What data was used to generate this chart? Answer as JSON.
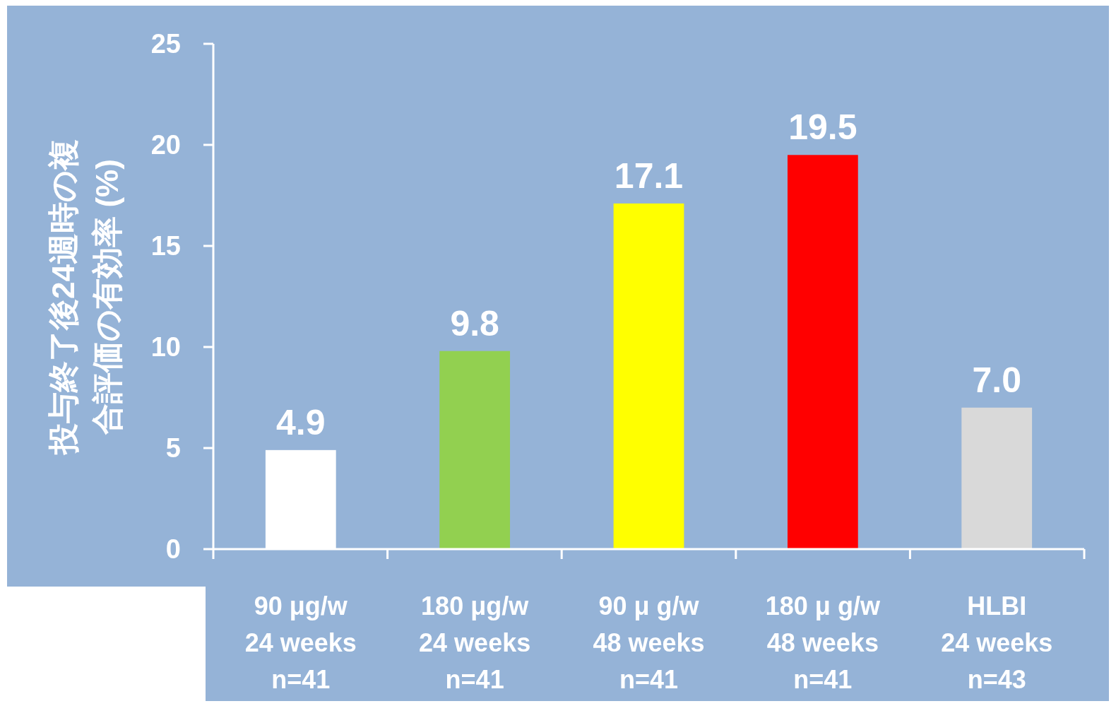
{
  "chart_data": {
    "type": "bar",
    "ylabel": "投与終了後24週時の複合評価の有効率 (%)",
    "categories": [
      "90 μg/w\n24 weeks\nn=41",
      "180 μg/w\n24 weeks\nn=41",
      "90 μ g/w\n48 weeks\nn=41",
      "180 μ g/w\n48 weeks\nn=41",
      "HLBI\n24 weeks\nn=43"
    ],
    "values": [
      4.9,
      9.8,
      17.1,
      19.5,
      7.0
    ],
    "value_labels": [
      "4.9",
      "9.8",
      "17.1",
      "19.5",
      "7.0"
    ],
    "colors": [
      "#ffffff",
      "#92d050",
      "#ffff00",
      "#ff0000",
      "#d9d9d9"
    ],
    "ylim": [
      0,
      25
    ],
    "yticks": [
      0,
      5,
      10,
      15,
      20,
      25
    ],
    "grid": false
  }
}
